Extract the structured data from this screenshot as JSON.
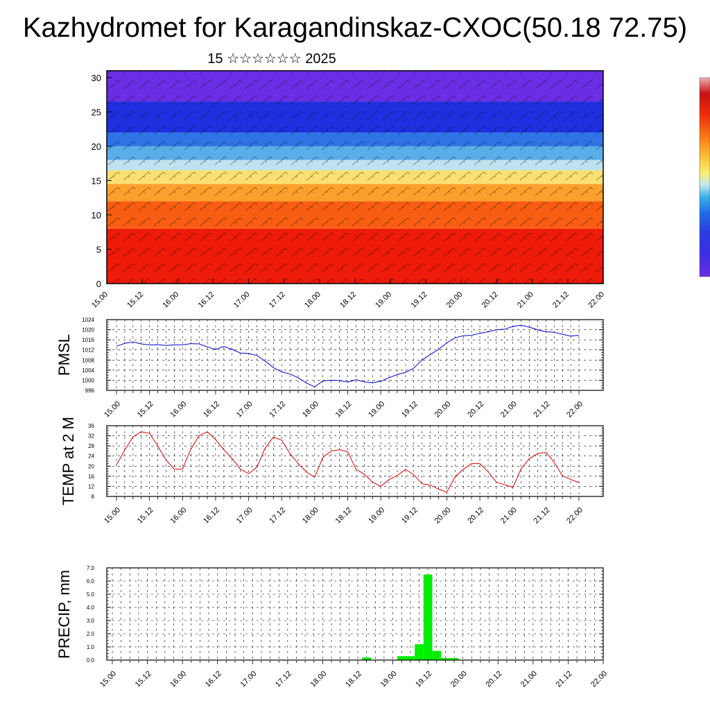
{
  "title": "Kazhydromet for Karagandinskaz-CXOC(50.18 72.75)",
  "date_label": "15 ☆☆☆☆☆☆ 2025",
  "colors": {
    "pmsl": "#0000cc",
    "temp": "#dd0000",
    "precip": "#00ee00"
  },
  "chart_data": [
    {
      "type": "heatmap",
      "name": "cross-section",
      "ylim": [
        0,
        31
      ],
      "yticks": [
        0,
        5,
        10,
        15,
        20,
        25,
        30
      ],
      "xticks": [
        "15.00",
        "15.12",
        "16.00",
        "16.12",
        "17.00",
        "17.12",
        "18.00",
        "18.12",
        "19.00",
        "19.12",
        "20.00",
        "20.12",
        "21.00",
        "21.12",
        "22.00"
      ],
      "color_bands": [
        {
          "from": 0,
          "to": 8,
          "color": "#ee1a0a"
        },
        {
          "from": 8,
          "to": 12,
          "color": "#f85d12"
        },
        {
          "from": 12,
          "to": 14.5,
          "color": "#fca02c"
        },
        {
          "from": 14.5,
          "to": 16.5,
          "color": "#f9e071"
        },
        {
          "from": 16.5,
          "to": 18,
          "color": "#bfe2ef"
        },
        {
          "from": 18,
          "to": 20,
          "color": "#5aaee8"
        },
        {
          "from": 20,
          "to": 22,
          "color": "#2f73e4"
        },
        {
          "from": 22,
          "to": 26.5,
          "color": "#1e2fe0"
        },
        {
          "from": 26.5,
          "to": 31,
          "color": "#6a2ee6"
        }
      ],
      "grid": false
    },
    {
      "type": "line",
      "ylabel": "PMSL",
      "ylim": [
        996,
        1024
      ],
      "yticks": [
        996,
        1000,
        1004,
        1008,
        1012,
        1016,
        1020,
        1024
      ],
      "xticks": [
        "15.00",
        "15.12",
        "16.00",
        "16.12",
        "17.00",
        "17.12",
        "18.00",
        "18.12",
        "19.00",
        "19.12",
        "20.00",
        "20.12",
        "21.00",
        "21.12",
        "22.00"
      ],
      "x_step_hours": 3,
      "values": [
        1013.5,
        1014.6,
        1015.2,
        1014.4,
        1014.0,
        1014.1,
        1013.8,
        1014.0,
        1014.0,
        1014.5,
        1014.4,
        1013.2,
        1012.2,
        1013.4,
        1012.2,
        1010.8,
        1010.6,
        1009.8,
        1007.6,
        1005.0,
        1003.3,
        1002.5,
        1001.0,
        998.9,
        997.4,
        999.8,
        1000.0,
        999.9,
        999.3,
        1000.2,
        999.4,
        999.0,
        999.6,
        1001.0,
        1002.3,
        1003.1,
        1004.8,
        1008.0,
        1010.2,
        1012.2,
        1014.8,
        1016.8,
        1017.6,
        1017.8,
        1018.6,
        1019.2,
        1020.0,
        1020.2,
        1021.3,
        1021.8,
        1021.0,
        1020.0,
        1019.2,
        1019.0,
        1018.2,
        1017.5,
        1017.8
      ],
      "grid": true
    },
    {
      "type": "line",
      "ylabel": "TEMP at 2 M",
      "ylim": [
        8,
        36
      ],
      "yticks": [
        8,
        12,
        16,
        20,
        24,
        28,
        32,
        36
      ],
      "xticks": [
        "15.00",
        "15.12",
        "16.00",
        "16.12",
        "17.00",
        "17.12",
        "18.00",
        "18.12",
        "19.00",
        "19.12",
        "20.00",
        "20.12",
        "21.00",
        "21.12",
        "22.00"
      ],
      "x_step_hours": 3,
      "values": [
        20.5,
        26.3,
        31.6,
        33.6,
        33.0,
        27.9,
        22.4,
        18.8,
        18.9,
        26.7,
        32.1,
        33.6,
        30.5,
        26.5,
        23.0,
        18.8,
        17.0,
        19.6,
        27.1,
        31.5,
        30.3,
        25.0,
        21.0,
        17.7,
        15.6,
        23.5,
        26.0,
        26.5,
        25.7,
        18.8,
        16.8,
        13.7,
        12.0,
        14.7,
        16.3,
        18.7,
        16.6,
        13.0,
        12.5,
        10.9,
        9.7,
        15.8,
        18.8,
        21.0,
        21.0,
        17.8,
        13.6,
        12.6,
        11.6,
        19.0,
        23.0,
        25.0,
        25.5,
        21.5,
        16.2,
        14.7,
        13.5
      ],
      "grid": true
    },
    {
      "type": "bar",
      "ylabel": "PRECIP, mm",
      "ylim": [
        0,
        7
      ],
      "yticks": [
        "0.0",
        "1.0",
        "2.0",
        "3.0",
        "4.0",
        "5.0",
        "6.0",
        "7.0"
      ],
      "xticks": [
        "15.00",
        "15.12",
        "16.00",
        "16.12",
        "17.00",
        "17.12",
        "18.00",
        "18.12",
        "19.00",
        "19.12",
        "20.00",
        "20.12",
        "21.00",
        "21.12",
        "22.00"
      ],
      "x_step_hours": 3,
      "bars": [
        {
          "index": 29,
          "value": 0.2
        },
        {
          "index": 33,
          "value": 0.3
        },
        {
          "index": 34,
          "value": 0.3
        },
        {
          "index": 35,
          "value": 1.2
        },
        {
          "index": 36,
          "value": 6.5
        },
        {
          "index": 37,
          "value": 0.7
        },
        {
          "index": 38,
          "value": 0.15
        },
        {
          "index": 39,
          "value": 0.15
        }
      ],
      "grid": true
    }
  ]
}
